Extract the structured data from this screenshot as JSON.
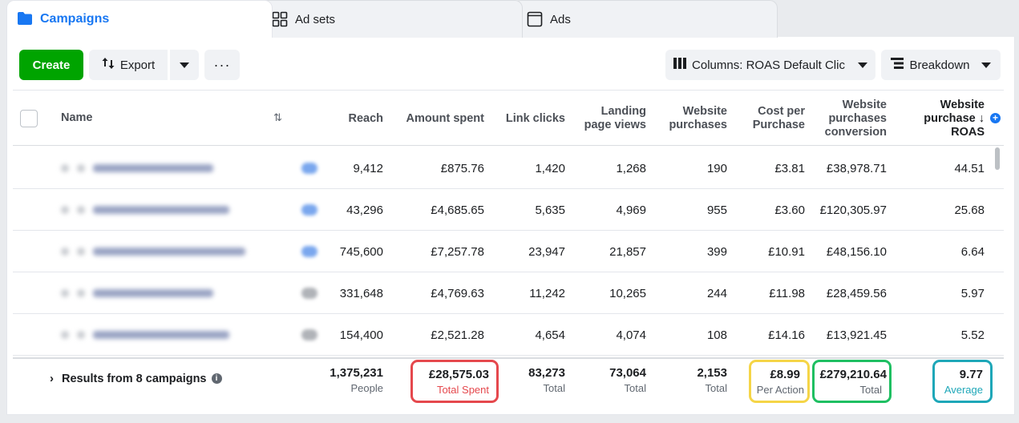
{
  "tabs": {
    "campaigns": "Campaigns",
    "adsets": "Ad sets",
    "ads": "Ads"
  },
  "toolbar": {
    "create": "Create",
    "export": "Export",
    "more": "···",
    "columns": "Columns: ROAS Default Clic",
    "breakdown": "Breakdown"
  },
  "table": {
    "headers": {
      "name": "Name",
      "reach": "Reach",
      "amount_spent": "Amount spent",
      "link_clicks": "Link clicks",
      "landing_page_views": "Landing page views",
      "website_purchases": "Website purchases",
      "cost_per_purchase": "Cost per Purchase",
      "conversion": "Website purchases conversion",
      "roas": "Website purchase ↓ ROAS"
    },
    "rows": [
      {
        "reach": "9,412",
        "amount_spent": "£875.76",
        "link_clicks": "1,420",
        "landing_page_views": "1,268",
        "website_purchases": "190",
        "cost_per_purchase": "£3.81",
        "conversion": "£38,978.71",
        "roas": "44.51",
        "toggle_color": "#7aa7ee"
      },
      {
        "reach": "43,296",
        "amount_spent": "£4,685.65",
        "link_clicks": "5,635",
        "landing_page_views": "4,969",
        "website_purchases": "955",
        "cost_per_purchase": "£3.60",
        "conversion": "£120,305.97",
        "roas": "25.68",
        "toggle_color": "#7aa7ee"
      },
      {
        "reach": "745,600",
        "amount_spent": "£7,257.78",
        "link_clicks": "23,947",
        "landing_page_views": "21,857",
        "website_purchases": "399",
        "cost_per_purchase": "£10.91",
        "conversion": "£48,156.10",
        "roas": "6.64",
        "toggle_color": "#7aa7ee"
      },
      {
        "reach": "331,648",
        "amount_spent": "£4,769.63",
        "link_clicks": "11,242",
        "landing_page_views": "10,265",
        "website_purchases": "244",
        "cost_per_purchase": "£11.98",
        "conversion": "£28,459.56",
        "roas": "5.97",
        "toggle_color": "#b0b3b8"
      },
      {
        "reach": "154,400",
        "amount_spent": "£2,521.28",
        "link_clicks": "4,654",
        "landing_page_views": "4,074",
        "website_purchases": "108",
        "cost_per_purchase": "£14.16",
        "conversion": "£13,921.45",
        "roas": "5.52",
        "toggle_color": "#b0b3b8"
      }
    ],
    "totals": {
      "label": "Results from 8 campaigns",
      "reach": "1,375,231",
      "reach_sub": "People",
      "amount_spent": "£28,575.03",
      "amount_spent_sub": "Total Spent",
      "link_clicks": "83,273",
      "link_clicks_sub": "Total",
      "landing_page_views": "73,064",
      "landing_page_views_sub": "Total",
      "website_purchases": "2,153",
      "website_purchases_sub": "Total",
      "cost_per_purchase": "£8.99",
      "cost_per_purchase_sub": "Per Action",
      "conversion": "£279,210.64",
      "conversion_sub": "Total",
      "roas": "9.77",
      "roas_sub": "Average"
    }
  },
  "colors": {
    "brand_blue": "#1877f2",
    "create_green": "#00a400",
    "highlight_red": "#e5484d",
    "highlight_yellow": "#f5d547",
    "highlight_green": "#1fbf62",
    "highlight_teal": "#1ea7b8"
  }
}
